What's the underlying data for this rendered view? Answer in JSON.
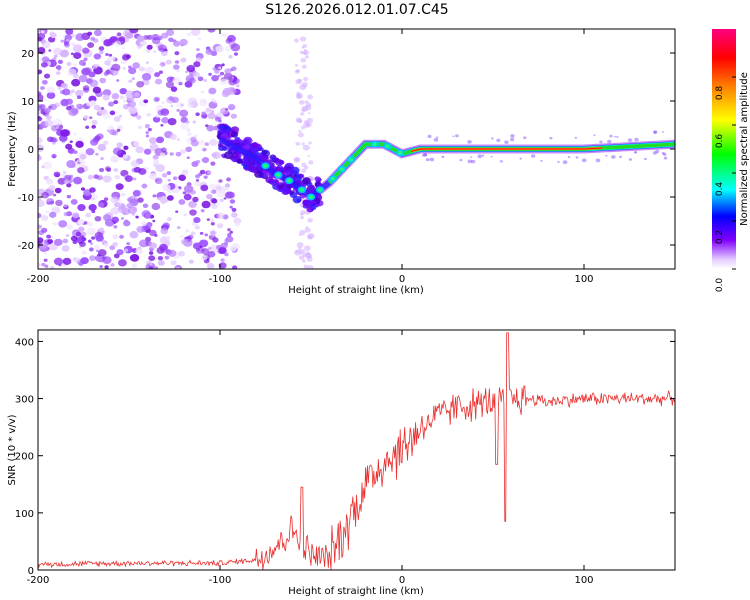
{
  "title": "S126.2026.012.01.07.C45",
  "chart_data": [
    {
      "type": "heatmap",
      "name": "spectrogram",
      "xlabel": "Height of straight line (km)",
      "ylabel": "Frequency (Hz)",
      "xlim": [
        -200,
        150
      ],
      "ylim": [
        -25,
        25
      ],
      "xticks": [
        -200,
        -100,
        0,
        100
      ],
      "xtick_labels": [
        "-200",
        "-100",
        "0",
        "100"
      ],
      "yticks": [
        -20,
        -10,
        0,
        10,
        20
      ],
      "ytick_labels": [
        "-20",
        "-10",
        "0",
        "10",
        "20"
      ],
      "colorbar": {
        "label": "Normalized spectral amplitude",
        "range": [
          0,
          1
        ],
        "ticks": [
          0.0,
          0.2,
          0.4,
          0.6,
          0.8
        ],
        "tick_labels": [
          "0.0",
          "0.2",
          "0.4",
          "0.6",
          "0.8"
        ],
        "colormap": [
          "#e5ccff",
          "#8000ff",
          "#0000ff",
          "#00ffff",
          "#00ff00",
          "#ffff00",
          "#ff8000",
          "#ff0000",
          "#ff0080"
        ]
      },
      "ridge": {
        "x": [
          -100,
          -90,
          -80,
          -70,
          -60,
          -50,
          -40,
          -30,
          -20,
          -10,
          0,
          10,
          50,
          100,
          150
        ],
        "y": [
          2,
          0,
          -2,
          -5,
          -7,
          -10,
          -7,
          -3,
          1,
          1,
          -1,
          0,
          0,
          0,
          1
        ]
      }
    },
    {
      "type": "line",
      "name": "snr",
      "xlabel": "Height of straight line (km)",
      "ylabel": "SNR (10 * v/v)",
      "xlim": [
        -200,
        150
      ],
      "ylim": [
        0,
        420
      ],
      "xticks": [
        -200,
        -100,
        0,
        100
      ],
      "xtick_labels": [
        "-200",
        "-100",
        "0",
        "100"
      ],
      "yticks": [
        0,
        100,
        200,
        300,
        400
      ],
      "ytick_labels": [
        "0",
        "100",
        "200",
        "300",
        "400"
      ],
      "color": "#e8302e",
      "envelope": {
        "x": [
          -200,
          -150,
          -100,
          -80,
          -70,
          -60,
          -50,
          -40,
          -30,
          -20,
          -10,
          0,
          10,
          20,
          30,
          40,
          50,
          60,
          70,
          80,
          100,
          150
        ],
        "y": [
          10,
          12,
          12,
          18,
          40,
          70,
          25,
          20,
          80,
          150,
          190,
          210,
          250,
          270,
          285,
          290,
          295,
          300,
          300,
          295,
          300,
          300
        ]
      },
      "spikes": [
        {
          "x": -55,
          "y": 145
        },
        {
          "x": 52,
          "y": 185
        },
        {
          "x": 57,
          "y": 85
        },
        {
          "x": 58,
          "y": 415
        }
      ]
    }
  ]
}
